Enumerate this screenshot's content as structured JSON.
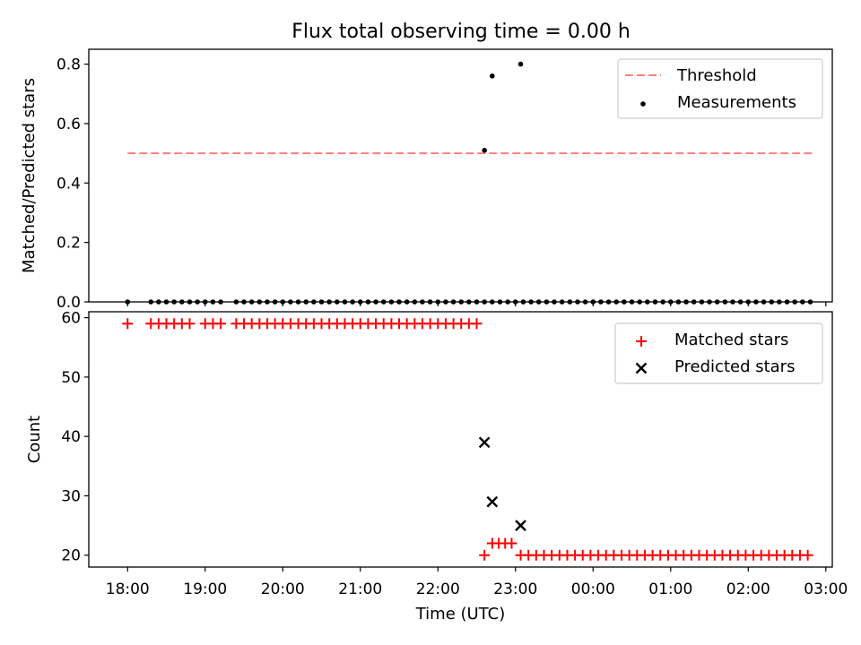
{
  "title": "Flux total observing time = 0.00 h",
  "chart_data": [
    {
      "type": "scatter",
      "panel": "top",
      "ylabel": "Matched/Predicted stars",
      "ylim": [
        0,
        0.85
      ],
      "yticks": [
        0.0,
        0.2,
        0.4,
        0.6,
        0.8
      ],
      "ytick_labels": [
        "0.0",
        "0.2",
        "0.4",
        "0.6",
        "0.8"
      ],
      "legend_position": "upper-right",
      "threshold": {
        "name": "Threshold",
        "value": 0.5,
        "x_start": "18:00",
        "x_end": "02:50",
        "color": "#ff7f7f"
      },
      "series": [
        {
          "name": "Measurements",
          "color": "#000000",
          "x": [
            "18:00",
            "18:18",
            "18:24",
            "18:30",
            "18:36",
            "18:42",
            "18:48",
            "18:54",
            "19:00",
            "19:06",
            "19:12",
            "19:24",
            "19:30",
            "19:36",
            "19:42",
            "19:48",
            "19:54",
            "20:00",
            "20:06",
            "20:12",
            "20:18",
            "20:24",
            "20:30",
            "20:36",
            "20:42",
            "20:48",
            "20:54",
            "21:00",
            "21:06",
            "21:12",
            "21:18",
            "21:24",
            "21:30",
            "21:36",
            "21:42",
            "21:48",
            "21:54",
            "22:00",
            "22:06",
            "22:12",
            "22:18",
            "22:24",
            "22:30",
            "22:36",
            "22:42",
            "22:48",
            "22:54",
            "23:00",
            "23:06",
            "23:12",
            "23:18",
            "23:24",
            "23:30",
            "23:36",
            "23:42",
            "23:48",
            "23:54",
            "00:00",
            "00:06",
            "00:12",
            "00:18",
            "00:24",
            "00:30",
            "00:36",
            "00:42",
            "00:48",
            "00:54",
            "01:00",
            "01:06",
            "01:12",
            "01:18",
            "01:24",
            "01:30",
            "01:36",
            "01:42",
            "01:48",
            "01:54",
            "02:00",
            "02:06",
            "02:12",
            "02:18",
            "02:24",
            "02:30",
            "02:36",
            "02:42",
            "02:48"
          ],
          "y": [
            0,
            0,
            0,
            0,
            0,
            0,
            0,
            0,
            0,
            0,
            0,
            0,
            0,
            0,
            0,
            0,
            0,
            0,
            0,
            0,
            0,
            0,
            0,
            0,
            0,
            0,
            0,
            0,
            0,
            0,
            0,
            0,
            0,
            0,
            0,
            0,
            0,
            0,
            0,
            0,
            0,
            0,
            0,
            0,
            0,
            0,
            0,
            0,
            0,
            0,
            0,
            0,
            0,
            0,
            0,
            0,
            0,
            0,
            0,
            0,
            0,
            0,
            0,
            0,
            0,
            0,
            0,
            0,
            0,
            0,
            0,
            0,
            0,
            0,
            0,
            0,
            0,
            0,
            0,
            0,
            0,
            0,
            0,
            0,
            0,
            0
          ],
          "extra_points": [
            {
              "x": "22:36",
              "y": 0.51
            },
            {
              "x": "22:42",
              "y": 0.76
            },
            {
              "x": "23:04",
              "y": 0.8
            }
          ]
        }
      ]
    },
    {
      "type": "scatter",
      "panel": "bottom",
      "xlabel": "Time (UTC)",
      "ylabel": "Count",
      "ylim": [
        18,
        61
      ],
      "yticks": [
        20,
        30,
        40,
        50,
        60
      ],
      "ytick_labels": [
        "20",
        "30",
        "40",
        "50",
        "60"
      ],
      "xticks": [
        "18:00",
        "19:00",
        "20:00",
        "21:00",
        "22:00",
        "23:00",
        "00:00",
        "01:00",
        "02:00",
        "03:00"
      ],
      "legend_position": "upper-right",
      "series": [
        {
          "name": "Matched stars",
          "marker": "plus",
          "color": "#ff0000",
          "groups": [
            {
              "from": "18:00",
              "to": "18:00",
              "step_min": 6,
              "y": 59
            },
            {
              "from": "18:18",
              "to": "18:48",
              "step_min": 6,
              "y": 59
            },
            {
              "from": "19:00",
              "to": "19:12",
              "step_min": 6,
              "y": 59
            },
            {
              "from": "19:24",
              "to": "22:30",
              "step_min": 6,
              "y": 59
            },
            {
              "from": "22:36",
              "to": "22:36",
              "step_min": 6,
              "y": 20
            },
            {
              "from": "22:42",
              "to": "23:00",
              "step_min": 5,
              "y": 22
            },
            {
              "from": "23:04",
              "to": "02:48",
              "step_min": 6,
              "y": 20
            }
          ]
        },
        {
          "name": "Predicted stars",
          "marker": "x",
          "color": "#000000",
          "points": [
            {
              "x": "22:36",
              "y": 39
            },
            {
              "x": "22:42",
              "y": 29
            },
            {
              "x": "23:04",
              "y": 25
            }
          ]
        }
      ]
    }
  ]
}
